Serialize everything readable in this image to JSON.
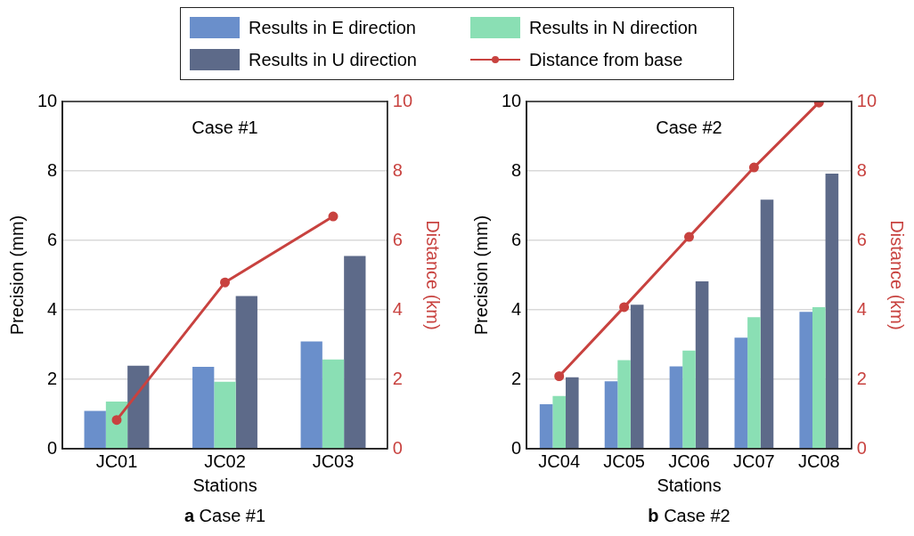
{
  "chart_data": [
    {
      "type": "bar",
      "title": "Case #1",
      "xlabel": "Stations",
      "ylabel": "Precision (mm)",
      "y2label": "Distance (km)",
      "annotations": [
        "a Case #1"
      ],
      "categories": [
        "JC01",
        "JC02",
        "JC03"
      ],
      "series": [
        {
          "name": "Results in E direction",
          "color": "#6a8fcb",
          "values": [
            1.09,
            2.36,
            3.09
          ]
        },
        {
          "name": "Results in N direction",
          "color": "#8adfb4",
          "values": [
            1.36,
            1.93,
            2.57
          ]
        },
        {
          "name": "Results in U direction",
          "color": "#5d6a89",
          "values": [
            2.39,
            4.4,
            5.55
          ]
        },
        {
          "name": "Distance from base",
          "type": "line",
          "axis": "y2",
          "color": "#c8423f",
          "values": [
            0.83,
            4.79,
            6.69
          ]
        }
      ],
      "ylim": [
        0,
        10
      ],
      "yticks": [
        0,
        2,
        4,
        6,
        8,
        10
      ],
      "y2lim": [
        0,
        10
      ],
      "y2ticks": [
        0,
        2,
        4,
        6,
        8,
        10
      ],
      "grid": "y",
      "legend": "top",
      "marker": "circle",
      "line_style": "solid"
    },
    {
      "type": "bar",
      "title": "Case #2",
      "xlabel": "Stations",
      "ylabel": "Precision (mm)",
      "y2label": "Distance (km)",
      "annotations": [
        "b Case #2"
      ],
      "categories": [
        "JC04",
        "JC05",
        "JC06",
        "JC07",
        "JC08"
      ],
      "series": [
        {
          "color": "#6a8fcb",
          "values": [
            1.28,
            1.94,
            2.37,
            3.2,
            3.94
          ]
        },
        {
          "color": "#8adfb4",
          "values": [
            1.52,
            2.55,
            2.83,
            3.79,
            4.08
          ]
        },
        {
          "color": "#5d6a89",
          "values": [
            2.06,
            4.15,
            4.82,
            7.17,
            7.92
          ]
        },
        {
          "type": "line",
          "axis": "y2",
          "color": "#c8423f",
          "values": [
            2.09,
            4.08,
            6.1,
            8.1,
            9.97
          ]
        }
      ],
      "ylim": [
        0,
        10
      ],
      "yticks": [
        0,
        2,
        4,
        6,
        8,
        10
      ],
      "y2lim": [
        0,
        10
      ],
      "y2ticks": [
        0,
        2,
        4,
        6,
        8,
        10
      ],
      "grid": "y",
      "marker": "circle",
      "line_style": "solid"
    }
  ]
}
